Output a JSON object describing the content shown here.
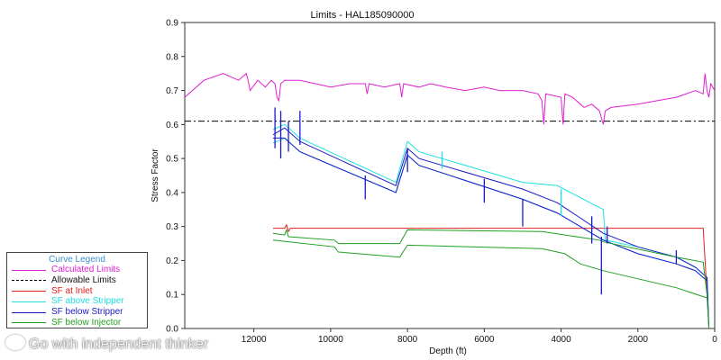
{
  "chart_data": {
    "type": "line",
    "title": "Limits - HAL185090000",
    "xlabel": "Depth (ft)",
    "ylabel": "Stress Factor",
    "xlim": [
      13800,
      0
    ],
    "ylim": [
      0,
      0.9
    ],
    "x_ticks": [
      "12000",
      "10000",
      "8000",
      "6000",
      "4000",
      "2000",
      "0"
    ],
    "x_tick_values": [
      12000,
      10000,
      8000,
      6000,
      4000,
      2000,
      0
    ],
    "y_ticks": [
      "0.0",
      "0.1",
      "0.2",
      "0.3",
      "0.4",
      "0.5",
      "0.6",
      "0.7",
      "0.8",
      "0.9"
    ],
    "y_tick_values": [
      0,
      0.1,
      0.2,
      0.3,
      0.4,
      0.5,
      0.6,
      0.7,
      0.8,
      0.9
    ],
    "legend": {
      "title": "Curve Legend",
      "position": "bottom-left",
      "entries": [
        {
          "label": "Calculated Limits",
          "color": "#e020d0",
          "dash": "solid"
        },
        {
          "label": "Allowable Limits",
          "color": "#000000",
          "dash": "dashdot"
        },
        {
          "label": "SF at Inlet",
          "color": "#e02020",
          "dash": "solid"
        },
        {
          "label": "SF above Stripper",
          "color": "#20e0e0",
          "dash": "solid"
        },
        {
          "label": "SF below Stripper",
          "color": "#1a1acc",
          "dash": "solid"
        },
        {
          "label": "SF below Injector",
          "color": "#20a020",
          "dash": "solid"
        }
      ]
    },
    "series": [
      {
        "name": "Calculated Limits",
        "color": "#e020d0",
        "x": [
          13800,
          13300,
          12800,
          12600,
          12400,
          12200,
          12150,
          12100,
          11900,
          11700,
          11550,
          11450,
          11400,
          11350,
          11300,
          11200,
          10800,
          10400,
          10000,
          9500,
          9100,
          9050,
          9000,
          8600,
          8200,
          8150,
          8100,
          7700,
          7400,
          7000,
          6500,
          6000,
          5600,
          5000,
          4600,
          4500,
          4450,
          4400,
          4000,
          3950,
          3900,
          3700,
          3400,
          3200,
          3000,
          2900,
          2850,
          2700,
          2000,
          1500,
          1000,
          500,
          300,
          250,
          200,
          150,
          100,
          0
        ],
        "y": [
          0.68,
          0.73,
          0.75,
          0.74,
          0.73,
          0.75,
          0.73,
          0.7,
          0.73,
          0.71,
          0.73,
          0.72,
          0.68,
          0.67,
          0.72,
          0.73,
          0.73,
          0.72,
          0.71,
          0.72,
          0.72,
          0.69,
          0.72,
          0.71,
          0.72,
          0.68,
          0.72,
          0.71,
          0.72,
          0.71,
          0.7,
          0.71,
          0.7,
          0.7,
          0.69,
          0.67,
          0.6,
          0.69,
          0.68,
          0.6,
          0.69,
          0.68,
          0.65,
          0.66,
          0.64,
          0.6,
          0.64,
          0.65,
          0.66,
          0.67,
          0.68,
          0.7,
          0.69,
          0.75,
          0.7,
          0.68,
          0.72,
          0.7
        ]
      },
      {
        "name": "Allowable Limits",
        "color": "#000000",
        "dash": "dashdot",
        "x": [
          13800,
          0
        ],
        "y": [
          0.61,
          0.61
        ]
      },
      {
        "name": "SF at Inlet",
        "color": "#e02020",
        "x": [
          11500,
          11200,
          11150,
          11100,
          11050,
          300,
          250,
          200,
          150
        ],
        "y": [
          0.295,
          0.295,
          0.305,
          0.285,
          0.295,
          0.295,
          0.2,
          0.1,
          0.0
        ]
      },
      {
        "name": "SF above Stripper",
        "color": "#20e0e0",
        "x": [
          11500,
          11200,
          10800,
          8300,
          8000,
          7700,
          5000,
          4100,
          2900,
          2850,
          2000,
          1000,
          500,
          200,
          150
        ],
        "y": [
          0.585,
          0.6,
          0.56,
          0.43,
          0.55,
          0.52,
          0.43,
          0.42,
          0.35,
          0.26,
          0.24,
          0.21,
          0.18,
          0.15,
          0.0
        ]
      },
      {
        "name": "SF above Stripper",
        "color": "#20e0e0",
        "x": [
          11500,
          11200,
          10800,
          8300,
          8000,
          7700,
          5000,
          4100,
          2900,
          2000,
          1000,
          500,
          200
        ],
        "y": [
          0.545,
          0.56,
          0.52,
          0.4,
          0.51,
          0.48,
          0.38,
          0.34,
          0.26,
          0.22,
          0.19,
          0.17,
          0.14
        ]
      },
      {
        "name": "SF below Stripper",
        "color": "#1a1acc",
        "x": [
          11500,
          11200,
          10800,
          8300,
          8000,
          7700,
          5000,
          4100,
          2900,
          2000,
          1000,
          500,
          200,
          150
        ],
        "y": [
          0.57,
          0.59,
          0.55,
          0.42,
          0.53,
          0.5,
          0.41,
          0.37,
          0.28,
          0.24,
          0.21,
          0.18,
          0.15,
          0.0
        ]
      },
      {
        "name": "SF below Stripper",
        "color": "#1a1acc",
        "x": [
          11500,
          11200,
          10800,
          8300,
          8000,
          7700,
          5000,
          4100,
          2900,
          2000,
          1000,
          500,
          200
        ],
        "y": [
          0.56,
          0.56,
          0.52,
          0.4,
          0.51,
          0.48,
          0.38,
          0.34,
          0.26,
          0.22,
          0.19,
          0.17,
          0.14
        ]
      },
      {
        "name": "SF below Injector",
        "color": "#20a020",
        "x": [
          11500,
          11200,
          11150,
          11100,
          9900,
          9800,
          8200,
          8000,
          4500,
          3000,
          2900,
          1000,
          300,
          200,
          150
        ],
        "y": [
          0.28,
          0.275,
          0.29,
          0.27,
          0.26,
          0.25,
          0.25,
          0.29,
          0.285,
          0.26,
          0.255,
          0.21,
          0.195,
          0.1,
          0.0
        ]
      },
      {
        "name": "SF below Injector",
        "color": "#20a020",
        "x": [
          11500,
          9900,
          9800,
          8200,
          8000,
          4500,
          3900,
          3500,
          2900,
          1000,
          200
        ],
        "y": [
          0.26,
          0.24,
          0.225,
          0.21,
          0.245,
          0.235,
          0.22,
          0.19,
          0.17,
          0.12,
          0.09
        ]
      }
    ],
    "spikes": [
      {
        "color": "#1a1acc",
        "x": 11450,
        "y1": 0.53,
        "y2": 0.65
      },
      {
        "color": "#1a1acc",
        "x": 11300,
        "y1": 0.5,
        "y2": 0.64
      },
      {
        "color": "#1a1acc",
        "x": 11100,
        "y1": 0.52,
        "y2": 0.61
      },
      {
        "color": "#1a1acc",
        "x": 10800,
        "y1": 0.54,
        "y2": 0.64
      },
      {
        "color": "#1a1acc",
        "x": 9100,
        "y1": 0.38,
        "y2": 0.45
      },
      {
        "color": "#1a1acc",
        "x": 8000,
        "y1": 0.46,
        "y2": 0.53
      },
      {
        "color": "#20e0e0",
        "x": 7100,
        "y1": 0.47,
        "y2": 0.52
      },
      {
        "color": "#1a1acc",
        "x": 6000,
        "y1": 0.37,
        "y2": 0.44
      },
      {
        "color": "#1a1acc",
        "x": 5000,
        "y1": 0.3,
        "y2": 0.38
      },
      {
        "color": "#20e0e0",
        "x": 4000,
        "y1": 0.33,
        "y2": 0.41
      },
      {
        "color": "#1a1acc",
        "x": 3200,
        "y1": 0.25,
        "y2": 0.33
      },
      {
        "color": "#1a1acc",
        "x": 2950,
        "y1": 0.1,
        "y2": 0.27
      },
      {
        "color": "#1a1acc",
        "x": 2800,
        "y1": 0.25,
        "y2": 0.3
      },
      {
        "color": "#1a1acc",
        "x": 1000,
        "y1": 0.19,
        "y2": 0.23
      }
    ]
  },
  "watermark": "Go with independent thinker"
}
